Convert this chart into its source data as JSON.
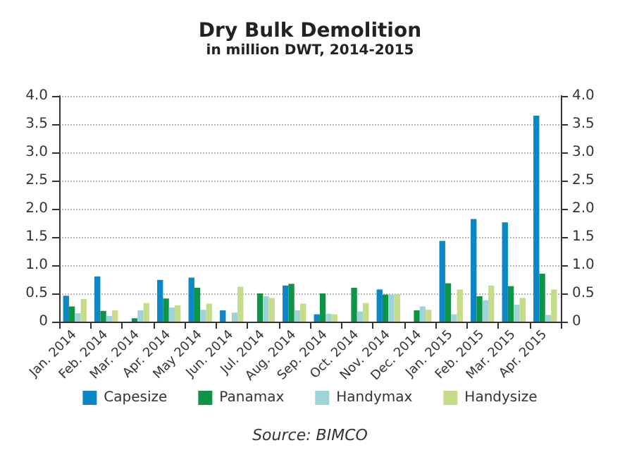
{
  "chart_data": {
    "type": "bar",
    "title": "Dry Bulk Demolition",
    "subtitle": "in million DWT, 2014-2015",
    "categories": [
      "Jan. 2014",
      "Feb. 2014",
      "Mar. 2014",
      "Apr. 2014",
      "May 2014",
      "Jun. 2014",
      "Jul. 2014",
      "Aug. 2014",
      "Sep. 2014",
      "Oct. 2014",
      "Nov. 2014",
      "Dec. 2014",
      "Jan. 2015",
      "Feb. 2015",
      "Mar. 2015",
      "Apr. 2015"
    ],
    "series": [
      {
        "name": "Capesize",
        "color": "#0a87c4",
        "values": [
          0.46,
          0.8,
          0,
          0.74,
          0.78,
          0.2,
          0,
          0.64,
          0.13,
          0,
          0.57,
          0,
          1.43,
          1.82,
          1.76,
          3.65
        ]
      },
      {
        "name": "Panamax",
        "color": "#0d9447",
        "values": [
          0.27,
          0.19,
          0.06,
          0.41,
          0.6,
          0,
          0.5,
          0.67,
          0.5,
          0.6,
          0.48,
          0.2,
          0.68,
          0.45,
          0.63,
          0.85
        ]
      },
      {
        "name": "Handymax",
        "color": "#9fd3d8",
        "values": [
          0.15,
          0.1,
          0.2,
          0.25,
          0.21,
          0.16,
          0.45,
          0.2,
          0.14,
          0.18,
          0.48,
          0.27,
          0.13,
          0.38,
          0.3,
          0.12
        ]
      },
      {
        "name": "Handysize",
        "color": "#c5dc8a",
        "values": [
          0.4,
          0.2,
          0.33,
          0.29,
          0.32,
          0.62,
          0.42,
          0.32,
          0.13,
          0.33,
          0.49,
          0.21,
          0.57,
          0.64,
          0.42,
          0.57
        ]
      }
    ],
    "ylim": [
      0,
      4
    ],
    "yticks": [
      0,
      0.5,
      {
        "value": 1,
        "label": "1.0"
      },
      1.5,
      {
        "value": 2,
        "label": "2.0"
      },
      2.5,
      {
        "value": 3,
        "label": "3.0"
      },
      3.5,
      {
        "value": 4,
        "label": "4.0"
      }
    ],
    "y2lim": [
      0,
      4
    ],
    "y2ticks": [
      0,
      0.5,
      {
        "value": 1,
        "label": "1.0"
      },
      1.5,
      {
        "value": 2,
        "label": "2.0"
      },
      2.5,
      {
        "value": 3,
        "label": "3.0"
      },
      3.5,
      {
        "value": 4,
        "label": "4.0"
      }
    ],
    "grid": "y",
    "legend": "bottom",
    "annotations": [
      "Source: BIMCO"
    ]
  }
}
